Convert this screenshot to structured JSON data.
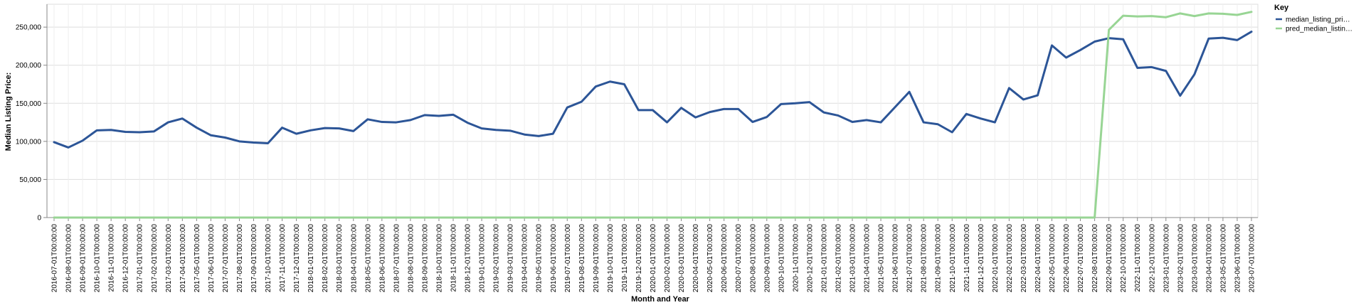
{
  "chart_data": {
    "type": "line",
    "xlabel": "Month and Year",
    "ylabel": "Median Listing Price:",
    "ylim": [
      0,
      280000
    ],
    "yticks": [
      0,
      50000,
      100000,
      150000,
      200000,
      250000
    ],
    "ytick_labels": [
      "0",
      "50,000",
      "100,000",
      "150,000",
      "200,000",
      "250,000"
    ],
    "grid": true,
    "legend_title": "Key",
    "legend_position": "top-right",
    "x": [
      "2016-07-01T00:00:00",
      "2016-08-01T00:00:00",
      "2016-09-01T00:00:00",
      "2016-10-01T00:00:00",
      "2016-11-01T00:00:00",
      "2016-12-01T00:00:00",
      "2017-01-01T00:00:00",
      "2017-02-01T00:00:00",
      "2017-03-01T00:00:00",
      "2017-04-01T00:00:00",
      "2017-05-01T00:00:00",
      "2017-06-01T00:00:00",
      "2017-07-01T00:00:00",
      "2017-08-01T00:00:00",
      "2017-09-01T00:00:00",
      "2017-10-01T00:00:00",
      "2017-11-01T00:00:00",
      "2017-12-01T00:00:00",
      "2018-01-01T00:00:00",
      "2018-02-01T00:00:00",
      "2018-03-01T00:00:00",
      "2018-04-01T00:00:00",
      "2018-05-01T00:00:00",
      "2018-06-01T00:00:00",
      "2018-07-01T00:00:00",
      "2018-08-01T00:00:00",
      "2018-09-01T00:00:00",
      "2018-10-01T00:00:00",
      "2018-11-01T00:00:00",
      "2018-12-01T00:00:00",
      "2019-01-01T00:00:00",
      "2019-02-01T00:00:00",
      "2019-03-01T00:00:00",
      "2019-04-01T00:00:00",
      "2019-05-01T00:00:00",
      "2019-06-01T00:00:00",
      "2019-07-01T00:00:00",
      "2019-08-01T00:00:00",
      "2019-09-01T00:00:00",
      "2019-10-01T00:00:00",
      "2019-11-01T00:00:00",
      "2019-12-01T00:00:00",
      "2020-01-01T00:00:00",
      "2020-02-01T00:00:00",
      "2020-03-01T00:00:00",
      "2020-04-01T00:00:00",
      "2020-05-01T00:00:00",
      "2020-06-01T00:00:00",
      "2020-07-01T00:00:00",
      "2020-08-01T00:00:00",
      "2020-09-01T00:00:00",
      "2020-10-01T00:00:00",
      "2020-11-01T00:00:00",
      "2020-12-01T00:00:00",
      "2021-01-01T00:00:00",
      "2021-02-01T00:00:00",
      "2021-03-01T00:00:00",
      "2021-04-01T00:00:00",
      "2021-05-01T00:00:00",
      "2021-06-01T00:00:00",
      "2021-07-01T00:00:00",
      "2021-08-01T00:00:00",
      "2021-09-01T00:00:00",
      "2021-10-01T00:00:00",
      "2021-11-01T00:00:00",
      "2021-12-01T00:00:00",
      "2022-01-01T00:00:00",
      "2022-02-01T00:00:00",
      "2022-03-01T00:00:00",
      "2022-04-01T00:00:00",
      "2022-05-01T00:00:00",
      "2022-06-01T00:00:00",
      "2022-07-01T00:00:00",
      "2022-08-01T00:00:00",
      "2022-09-01T00:00:00",
      "2022-10-01T00:00:00",
      "2022-11-01T00:00:00",
      "2022-12-01T00:00:00",
      "2023-01-01T00:00:00",
      "2023-02-01T00:00:00",
      "2023-03-01T00:00:00",
      "2023-04-01T00:00:00",
      "2023-05-01T00:00:00",
      "2023-06-01T00:00:00",
      "2023-07-01T00:00:00"
    ],
    "series": [
      {
        "name": "median_listing_pri…",
        "color": "#2c5597",
        "values": [
          99000,
          92000,
          101000,
          114500,
          115000,
          112500,
          112000,
          113000,
          125000,
          130000,
          118000,
          108000,
          105000,
          100000,
          98500,
          97500,
          118000,
          110000,
          114500,
          117500,
          117000,
          113500,
          129000,
          125500,
          125000,
          128000,
          134500,
          133500,
          135000,
          124500,
          117000,
          115000,
          114000,
          109000,
          107000,
          110000,
          144500,
          152000,
          172000,
          178500,
          175000,
          141000,
          141000,
          125000,
          144000,
          131500,
          138500,
          142500,
          142500,
          125500,
          132000,
          149000,
          150000,
          151500,
          138000,
          134000,
          125500,
          128000,
          125000,
          145000,
          165000,
          125000,
          122500,
          112000,
          136000,
          130000,
          125000,
          170000,
          155000,
          160500,
          226000,
          210000,
          220000,
          231000,
          235500,
          234000,
          196500,
          197500,
          192500,
          160000,
          188000,
          235000,
          236000,
          233000,
          244000
        ]
      },
      {
        "name": "pred_median_listin…",
        "color": "#98d594",
        "values": [
          0,
          0,
          0,
          0,
          0,
          0,
          0,
          0,
          0,
          0,
          0,
          0,
          0,
          0,
          0,
          0,
          0,
          0,
          0,
          0,
          0,
          0,
          0,
          0,
          0,
          0,
          0,
          0,
          0,
          0,
          0,
          0,
          0,
          0,
          0,
          0,
          0,
          0,
          0,
          0,
          0,
          0,
          0,
          0,
          0,
          0,
          0,
          0,
          0,
          0,
          0,
          0,
          0,
          0,
          0,
          0,
          0,
          0,
          0,
          0,
          0,
          0,
          0,
          0,
          0,
          0,
          0,
          0,
          0,
          0,
          0,
          0,
          0,
          0,
          246500,
          265000,
          264000,
          264500,
          263000,
          268000,
          264500,
          268000,
          267500,
          266000,
          270000
        ]
      }
    ]
  }
}
